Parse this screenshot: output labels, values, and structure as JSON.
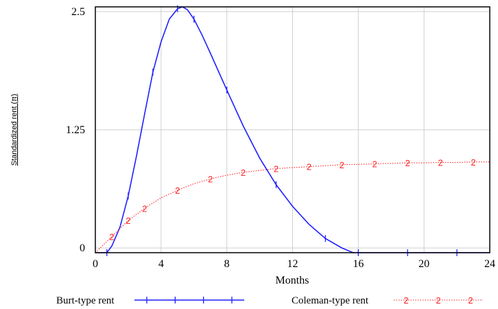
{
  "chart_data": {
    "type": "line",
    "xlabel": "Months",
    "ylabel": "Standardized rent (π)",
    "xlim": [
      0,
      24
    ],
    "ylim": [
      -0.05,
      2.55
    ],
    "x_ticks": [
      0,
      4,
      8,
      12,
      16,
      20,
      24
    ],
    "x_tick_labels": [
      "0",
      "4",
      "8",
      "12",
      "16",
      "20",
      "24"
    ],
    "y_ticks": [
      0,
      1.25,
      2.5
    ],
    "y_tick_labels": [
      "0",
      "1.25",
      "2.5"
    ],
    "grid": true,
    "legend_position": "bottom",
    "series": [
      {
        "name": "Burt-type rent",
        "marker": "1",
        "color": "#1f1fff",
        "line_style": "solid",
        "x": [
          0,
          0.7,
          1,
          1.5,
          2,
          2.5,
          3,
          3.5,
          4,
          4.5,
          5,
          5.3,
          5.6,
          6,
          6.5,
          7,
          8,
          9,
          10,
          11,
          12,
          13,
          14,
          15,
          15.7,
          16,
          17,
          18,
          19,
          20,
          21,
          22,
          23,
          24
        ],
        "y": [
          -0.05,
          -0.05,
          0.02,
          0.22,
          0.55,
          0.97,
          1.42,
          1.86,
          2.18,
          2.42,
          2.53,
          2.55,
          2.52,
          2.42,
          2.25,
          2.06,
          1.67,
          1.29,
          0.95,
          0.67,
          0.44,
          0.25,
          0.1,
          0.0,
          -0.05,
          -0.05,
          -0.05,
          -0.05,
          -0.05,
          -0.05,
          -0.05,
          -0.05,
          -0.05,
          -0.05
        ]
      },
      {
        "name": "Coleman-type rent",
        "marker": "2",
        "color": "#ff2020",
        "line_style": "dotted",
        "x": [
          0,
          1,
          2,
          3,
          4,
          5,
          6,
          7,
          8,
          9,
          10,
          11,
          12,
          13,
          14,
          15,
          16,
          17,
          18,
          19,
          20,
          21,
          22,
          23,
          24
        ],
        "y": [
          -0.05,
          0.12,
          0.29,
          0.42,
          0.53,
          0.61,
          0.68,
          0.73,
          0.77,
          0.8,
          0.82,
          0.84,
          0.85,
          0.86,
          0.87,
          0.88,
          0.885,
          0.89,
          0.895,
          0.9,
          0.9,
          0.905,
          0.905,
          0.91,
          0.91
        ]
      }
    ]
  }
}
